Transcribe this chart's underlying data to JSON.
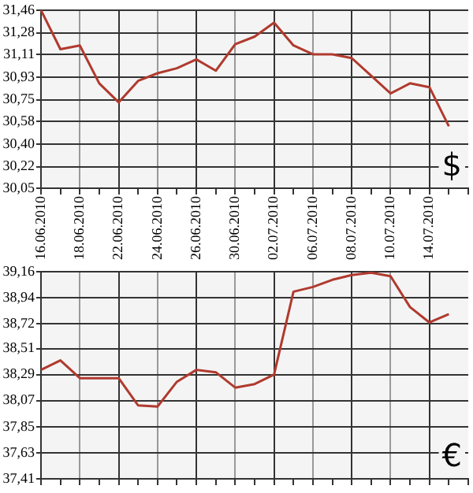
{
  "chart_data": [
    {
      "type": "line",
      "annotations": [
        "$"
      ],
      "color": "#b03a2e",
      "grid": true,
      "legend": false,
      "marker": "none",
      "categories": [
        "16.06.2010",
        null,
        "18.06.2010",
        null,
        "22.06.2010",
        null,
        "24.06.2010",
        null,
        "26.06.2010",
        null,
        "30.06.2010",
        null,
        "02.07.2010",
        null,
        "06.07.2010",
        null,
        "08.07.2010",
        null,
        "10.07.2010",
        null,
        "14.07.2010",
        null,
        null
      ],
      "values": [
        31.46,
        31.15,
        31.18,
        30.88,
        30.73,
        30.9,
        30.96,
        31.0,
        31.07,
        30.98,
        31.19,
        31.25,
        31.36,
        31.18,
        31.11,
        31.11,
        31.08,
        30.94,
        30.8,
        30.88,
        30.85,
        30.54,
        null
      ],
      "ylim": [
        30.05,
        31.46
      ],
      "yticks": [
        {
          "value": 30.05,
          "label": "30,05"
        },
        {
          "value": 30.22,
          "label": "30,22"
        },
        {
          "value": 30.4,
          "label": "30,40"
        },
        {
          "value": 30.58,
          "label": "30,58"
        },
        {
          "value": 30.75,
          "label": "30,75"
        },
        {
          "value": 30.93,
          "label": "30,93"
        },
        {
          "value": 31.11,
          "label": "31,11"
        },
        {
          "value": 31.28,
          "label": "31,28"
        },
        {
          "value": 31.46,
          "label": "31,46"
        }
      ]
    },
    {
      "type": "line",
      "annotations": [
        "€"
      ],
      "color": "#b03a2e",
      "grid": true,
      "legend": false,
      "marker": "none",
      "tick_labels": "y",
      "categories": [
        "16.06.2010",
        null,
        "18.06.2010",
        null,
        "22.06.2010",
        null,
        "24.06.2010",
        null,
        "26.06.2010",
        null,
        "30.06.2010",
        null,
        "02.07.2010",
        null,
        "06.07.2010",
        null,
        "08.07.2010",
        null,
        "10.07.2010",
        null,
        "14.07.2010",
        null,
        null
      ],
      "values": [
        38.33,
        38.41,
        38.26,
        38.26,
        38.26,
        38.03,
        38.02,
        38.23,
        38.33,
        38.31,
        38.18,
        38.21,
        38.29,
        38.99,
        39.03,
        39.09,
        39.13,
        39.15,
        39.12,
        38.86,
        38.73,
        38.8,
        null
      ],
      "ylim": [
        37.41,
        39.16
      ],
      "yticks": [
        {
          "value": 37.41,
          "label": "37,41"
        },
        {
          "value": 37.63,
          "label": "37,63"
        },
        {
          "value": 37.85,
          "label": "37,85"
        },
        {
          "value": 38.07,
          "label": "38,07"
        },
        {
          "value": 38.29,
          "label": "38,29"
        },
        {
          "value": 38.51,
          "label": "38,51"
        },
        {
          "value": 38.72,
          "label": "38,72"
        },
        {
          "value": 38.94,
          "label": "38,94"
        },
        {
          "value": 39.16,
          "label": "39,16"
        }
      ]
    }
  ]
}
